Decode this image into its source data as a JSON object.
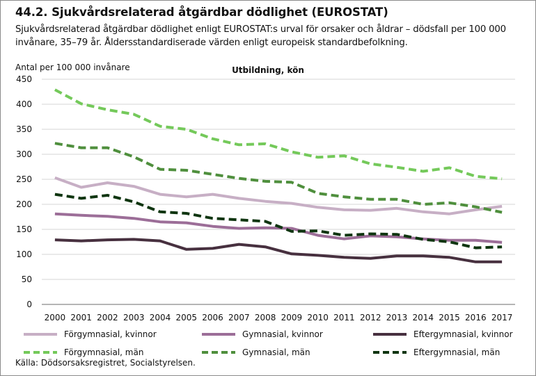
{
  "figure": {
    "title": "44.2. Sjukvårdsrelaterad åtgärdbar dödlighet (EUROSTAT)",
    "subtitle": "Sjukvårdsrelaterad åtgärdbar dödlighet enligt EUROSTAT:s urval för orsaker och åldrar – dödsfall per 100 000 invånare, 35–79 år. Åldersstandardiserade värden enligt europeisk standardbefolkning.",
    "source": "Källa: Dödsorsaksregistret, Socialstyrelsen."
  },
  "chart_data": {
    "type": "line",
    "panel_title": "Utbildning, kön",
    "ylabel": "Antal per 100 000 invånare",
    "xlabel": "",
    "ylim": [
      0,
      450
    ],
    "yticks": [
      0,
      50,
      100,
      150,
      200,
      250,
      300,
      350,
      400,
      450
    ],
    "grid": true,
    "legend_position": "bottom",
    "x": [
      "2000",
      "2001",
      "2002",
      "2003",
      "2004",
      "2005",
      "2006",
      "2007",
      "2008",
      "2009",
      "2010",
      "2011",
      "2012",
      "2013",
      "2014",
      "2015",
      "2016",
      "2017"
    ],
    "series": [
      {
        "name": "Förgymnasial, kvinnor",
        "color": "#c7afc5",
        "dash": "solid",
        "values": [
          253,
          234,
          243,
          236,
          220,
          215,
          220,
          212,
          206,
          202,
          194,
          189,
          188,
          192,
          185,
          181,
          189,
          196
        ]
      },
      {
        "name": "Gymnasial, kvinnor",
        "color": "#9c6e98",
        "dash": "solid",
        "values": [
          181,
          178,
          176,
          172,
          165,
          163,
          156,
          152,
          153,
          152,
          138,
          131,
          137,
          135,
          131,
          128,
          128,
          124
        ]
      },
      {
        "name": "Eftergymnasial, kvinnor",
        "color": "#47303f",
        "dash": "solid",
        "values": [
          129,
          127,
          129,
          130,
          127,
          110,
          112,
          120,
          115,
          101,
          98,
          94,
          92,
          97,
          97,
          94,
          85,
          85
        ]
      },
      {
        "name": "Förgymnasial, män",
        "color": "#74c95a",
        "dash": "dashed",
        "values": [
          429,
          401,
          389,
          380,
          356,
          350,
          331,
          319,
          321,
          305,
          294,
          297,
          281,
          274,
          266,
          273,
          256,
          251
        ]
      },
      {
        "name": "Gymnasial, män",
        "color": "#4f8f3d",
        "dash": "dashed",
        "values": [
          322,
          313,
          313,
          295,
          270,
          268,
          260,
          252,
          246,
          244,
          222,
          215,
          210,
          210,
          200,
          203,
          195,
          184
        ]
      },
      {
        "name": "Eftergymnasial, män",
        "color": "#0f3510",
        "dash": "dashed",
        "values": [
          220,
          212,
          218,
          205,
          185,
          182,
          172,
          169,
          166,
          146,
          147,
          138,
          141,
          140,
          130,
          125,
          113,
          115
        ]
      }
    ]
  }
}
